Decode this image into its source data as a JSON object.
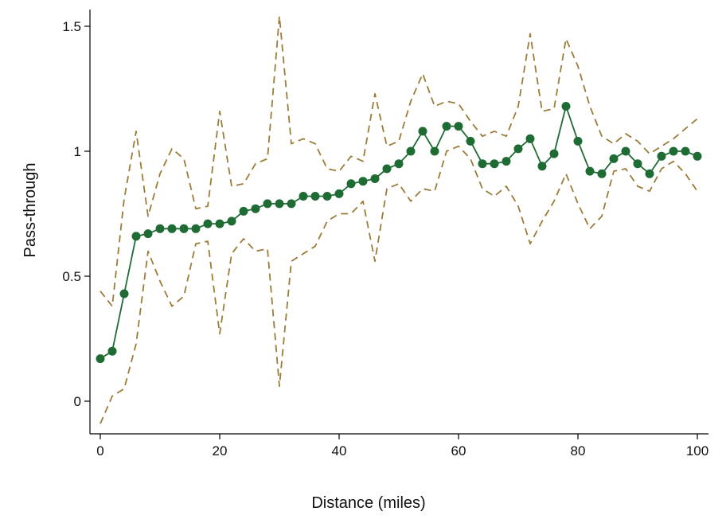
{
  "chart_data": {
    "type": "line",
    "title": "",
    "xlabel": "Distance (miles)",
    "ylabel": "Pass-through",
    "xlim": [
      0,
      100
    ],
    "ylim": [
      -0.13,
      1.57
    ],
    "x_ticks": [
      0,
      20,
      40,
      60,
      80,
      100
    ],
    "y_ticks": [
      0,
      0.5,
      1,
      1.5
    ],
    "x_tick_labels": [
      "0",
      "20",
      "40",
      "60",
      "80",
      "100"
    ],
    "y_tick_labels": [
      "0",
      "0.5",
      "1",
      "1.5"
    ],
    "grid": false,
    "legend": "none",
    "x": [
      0,
      2,
      4,
      6,
      8,
      10,
      12,
      14,
      16,
      18,
      20,
      22,
      24,
      26,
      28,
      30,
      32,
      34,
      36,
      38,
      40,
      42,
      44,
      46,
      48,
      50,
      52,
      54,
      56,
      58,
      60,
      62,
      64,
      66,
      68,
      70,
      72,
      74,
      76,
      78,
      80,
      82,
      84,
      86,
      88,
      90,
      92,
      94,
      96,
      98,
      100
    ],
    "series": [
      {
        "style": "solid-markers",
        "color": "#1f6b34",
        "values": [
          0.17,
          0.2,
          0.43,
          0.66,
          0.67,
          0.69,
          0.69,
          0.69,
          0.69,
          0.71,
          0.71,
          0.72,
          0.76,
          0.77,
          0.79,
          0.79,
          0.79,
          0.82,
          0.82,
          0.82,
          0.83,
          0.87,
          0.88,
          0.89,
          0.93,
          0.95,
          1.0,
          1.08,
          1.0,
          1.1,
          1.1,
          1.04,
          0.95,
          0.95,
          0.96,
          1.01,
          1.05,
          0.94,
          0.99,
          1.18,
          1.04,
          0.92,
          0.91,
          0.97,
          1.0,
          0.95,
          0.91,
          0.98,
          1.0,
          1.0,
          0.98
        ]
      },
      {
        "style": "dashed",
        "color": "#9b7c38",
        "values": [
          0.44,
          0.38,
          0.81,
          1.08,
          0.74,
          0.91,
          1.01,
          0.97,
          0.77,
          0.78,
          1.16,
          0.86,
          0.87,
          0.95,
          0.97,
          1.54,
          1.03,
          1.05,
          1.03,
          0.93,
          0.92,
          0.98,
          0.96,
          1.23,
          1.02,
          1.04,
          1.2,
          1.31,
          1.18,
          1.2,
          1.19,
          1.12,
          1.06,
          1.08,
          1.06,
          1.18,
          1.47,
          1.16,
          1.17,
          1.45,
          1.34,
          1.18,
          1.06,
          1.03,
          1.07,
          1.04,
          0.99,
          1.02,
          1.05,
          1.09,
          1.13
        ]
      },
      {
        "style": "dashed",
        "color": "#9b7c38",
        "values": [
          -0.09,
          0.02,
          0.05,
          0.23,
          0.6,
          0.48,
          0.38,
          0.42,
          0.63,
          0.64,
          0.27,
          0.59,
          0.65,
          0.6,
          0.61,
          0.06,
          0.56,
          0.59,
          0.62,
          0.72,
          0.75,
          0.75,
          0.8,
          0.56,
          0.85,
          0.87,
          0.8,
          0.85,
          0.84,
          1.0,
          1.02,
          0.97,
          0.85,
          0.82,
          0.86,
          0.78,
          0.63,
          0.72,
          0.8,
          0.91,
          0.79,
          0.69,
          0.74,
          0.92,
          0.93,
          0.86,
          0.84,
          0.93,
          0.96,
          0.91,
          0.84
        ]
      }
    ]
  }
}
